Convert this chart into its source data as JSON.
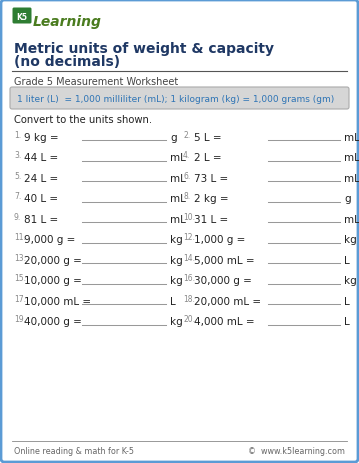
{
  "title_line1": "Metric units of weight & capacity",
  "title_line2": "(no decimals)",
  "subtitle": "Grade 5 Measurement Worksheet",
  "formula_box": "1 liter (L)  = 1,000 milliliter (mL); 1 kilogram (kg) = 1,000 grams (gm)",
  "instruction": "Convert to the units shown.",
  "problems": [
    {
      "num": "1.",
      "left": "9 kg =",
      "right_unit": "g",
      "col": 0
    },
    {
      "num": "2.",
      "left": "5 L =",
      "right_unit": "mL",
      "col": 1
    },
    {
      "num": "3.",
      "left": "44 L =",
      "right_unit": "mL",
      "col": 0
    },
    {
      "num": "4.",
      "left": "2 L =",
      "right_unit": "mL",
      "col": 1
    },
    {
      "num": "5.",
      "left": "24 L =",
      "right_unit": "mL",
      "col": 0
    },
    {
      "num": "6.",
      "left": "73 L =",
      "right_unit": "mL",
      "col": 1
    },
    {
      "num": "7.",
      "left": "40 L =",
      "right_unit": "mL",
      "col": 0
    },
    {
      "num": "8.",
      "left": "2 kg =",
      "right_unit": "g",
      "col": 1
    },
    {
      "num": "9.",
      "left": "81 L =",
      "right_unit": "mL",
      "col": 0
    },
    {
      "num": "10.",
      "left": "31 L =",
      "right_unit": "mL",
      "col": 1
    },
    {
      "num": "11.",
      "left": "9,000 g =",
      "right_unit": "kg",
      "col": 0
    },
    {
      "num": "12.",
      "left": "1,000 g =",
      "right_unit": "kg",
      "col": 1
    },
    {
      "num": "13.",
      "left": "20,000 g =",
      "right_unit": "kg",
      "col": 0
    },
    {
      "num": "14.",
      "left": "5,000 mL =",
      "right_unit": "L",
      "col": 1
    },
    {
      "num": "15.",
      "left": "10,000 g =",
      "right_unit": "kg",
      "col": 0
    },
    {
      "num": "16.",
      "left": "30,000 g =",
      "right_unit": "kg",
      "col": 1
    },
    {
      "num": "17.",
      "left": "10,000 mL =",
      "right_unit": "L",
      "col": 0
    },
    {
      "num": "18.",
      "left": "20,000 mL =",
      "right_unit": "L",
      "col": 1
    },
    {
      "num": "19.",
      "left": "40,000 g =",
      "right_unit": "kg",
      "col": 0
    },
    {
      "num": "20.",
      "left": "4,000 mL =",
      "right_unit": "L",
      "col": 1
    }
  ],
  "footer_left": "Online reading & math for K-5",
  "footer_right": "©  www.k5learning.com",
  "bg_color": "#ffffff",
  "border_color": "#5b9bd5",
  "title_color": "#1f3864",
  "formula_bg": "#d6d6d6",
  "formula_text_color": "#2e74b5",
  "subtitle_color": "#444444",
  "problem_color": "#222222",
  "footer_color": "#666666",
  "line_color": "#999999",
  "num_color": "#888888"
}
